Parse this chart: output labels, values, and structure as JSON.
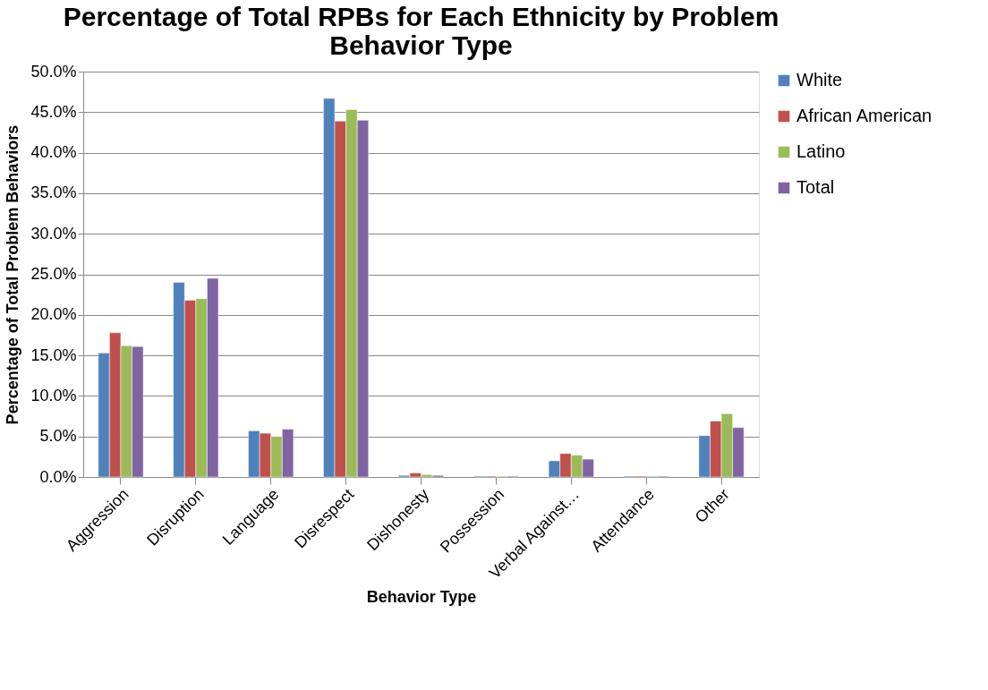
{
  "chart_data": {
    "type": "bar",
    "title": "Percentage of Total RPBs for Each Ethnicity by Problem Behavior Type",
    "xlabel": "Behavior Type",
    "ylabel": "Percentage of Total Problem Behaviors",
    "categories": [
      "Aggression",
      "Disruption",
      "Language",
      "Disrespect",
      "Dishonesty",
      "Possession",
      "Verbal Against…",
      "Attendance",
      "Other"
    ],
    "series": [
      {
        "name": "White",
        "color": "#4f81bd",
        "values": [
          15.3,
          24.0,
          5.7,
          46.7,
          0.2,
          0.1,
          2.0,
          0.1,
          5.1
        ]
      },
      {
        "name": "African American",
        "color": "#c0504d",
        "values": [
          17.8,
          21.8,
          5.4,
          43.9,
          0.5,
          0.1,
          2.9,
          0.1,
          6.9
        ]
      },
      {
        "name": "Latino",
        "color": "#9bbb59",
        "values": [
          16.2,
          22.0,
          5.0,
          45.3,
          0.3,
          0.1,
          2.7,
          0.1,
          7.8
        ]
      },
      {
        "name": "Total",
        "color": "#8064a2",
        "values": [
          16.1,
          24.5,
          5.9,
          44.0,
          0.2,
          0.1,
          2.2,
          0.1,
          6.1
        ]
      }
    ],
    "ylim": [
      0,
      50
    ],
    "yticks": [
      {
        "value": 0,
        "label": "0.0%"
      },
      {
        "value": 5,
        "label": "5.0%"
      },
      {
        "value": 10,
        "label": "10.0%"
      },
      {
        "value": 15,
        "label": "15.0%"
      },
      {
        "value": 20,
        "label": "20.0%"
      },
      {
        "value": 25,
        "label": "25.0%"
      },
      {
        "value": 30,
        "label": "30.0%"
      },
      {
        "value": 35,
        "label": "35.0%"
      },
      {
        "value": 40,
        "label": "40.0%"
      },
      {
        "value": 45,
        "label": "45.0%"
      },
      {
        "value": 50,
        "label": "50.0%"
      }
    ],
    "grid": "y",
    "legend": "right"
  }
}
